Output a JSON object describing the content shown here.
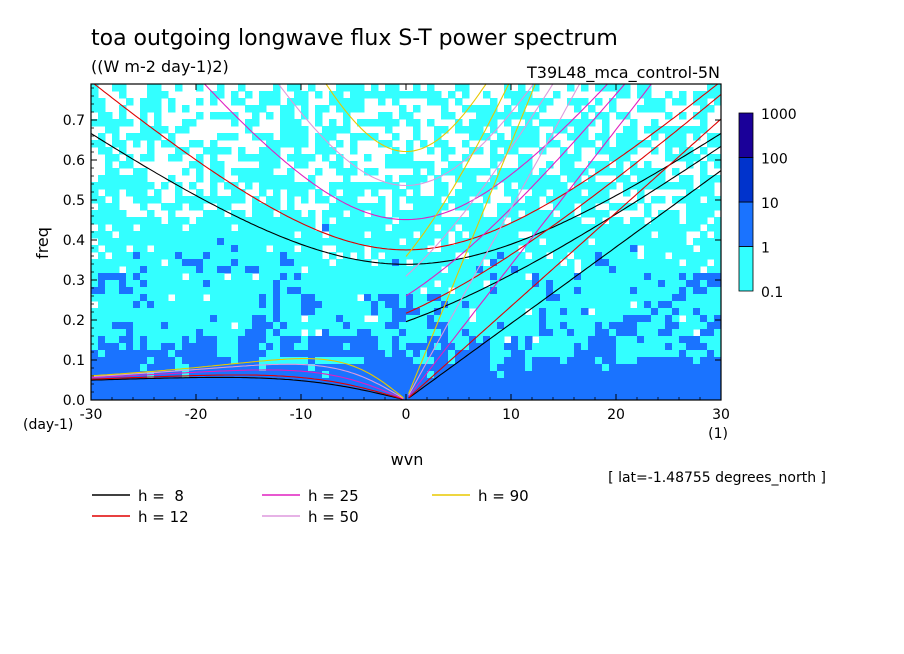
{
  "chart_data": {
    "type": "heatmap",
    "title": "toa outgoing longwave flux S-T power spectrum",
    "units": "((W m-2 day-1)2)",
    "experiment": "T39L48_mca_control-5N",
    "xlabel": "wvn",
    "xunit": "(1)",
    "ylabel": "freq",
    "yunit": "(day-1)",
    "xlim": [
      -30,
      30
    ],
    "ylim": [
      0,
      0.79
    ],
    "xticks": [
      "-30",
      "-20",
      "-10",
      "0",
      "10",
      "20",
      "30"
    ],
    "yticks": [
      "0.0",
      "0.1",
      "0.2",
      "0.3",
      "0.4",
      "0.5",
      "0.6",
      "0.7"
    ],
    "colorbar": {
      "labels": [
        "0.1",
        "1",
        "10",
        "100",
        "1000"
      ],
      "colors": [
        "#33ffff",
        "#1a73ff",
        "#0033cc",
        "#1a0099"
      ]
    },
    "field_note": "[ lat=-1.48755 degrees_north ]",
    "dispersion_curves": [
      {
        "label": "h =  8",
        "h": 8,
        "color": "#000000"
      },
      {
        "label": "h = 12",
        "h": 12,
        "color": "#e00000"
      },
      {
        "label": "h = 25",
        "h": 25,
        "color": "#e020c0"
      },
      {
        "label": "h = 50",
        "h": 50,
        "color": "#dd99dd"
      },
      {
        "label": "h = 90",
        "h": 90,
        "color": "#e8c800"
      }
    ]
  }
}
